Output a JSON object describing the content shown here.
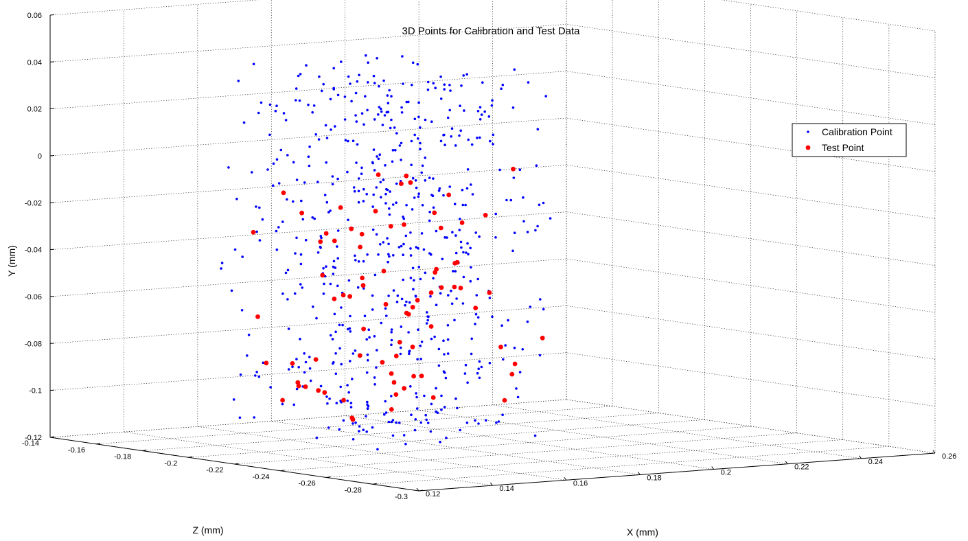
{
  "chart_data": {
    "type": "scatter",
    "dimensions": 3,
    "title": "3D Points for Calibration and Test Data",
    "xlabel": "X (mm)",
    "ylabel": "Y (mm)",
    "zlabel": "Z (mm)",
    "xlim": [
      0.12,
      0.26
    ],
    "ylim": [
      -0.12,
      0.06
    ],
    "zlim": [
      -0.3,
      -0.14
    ],
    "x_ticks": [
      "0.12",
      "0.14",
      "0.16",
      "0.18",
      "0.2",
      "0.22",
      "0.24",
      "0.26"
    ],
    "y_ticks": [
      "-0.12",
      "-0.1",
      "-0.08",
      "-0.06",
      "-0.04",
      "-0.02",
      "0",
      "0.02",
      "0.04",
      "0.06"
    ],
    "z_ticks": [
      "-0.14",
      "-0.16",
      "-0.18",
      "-0.2",
      "-0.22",
      "-0.24",
      "-0.26",
      "-0.28",
      "-0.3"
    ],
    "grid": true,
    "box": true,
    "legend_position": "top-right",
    "series": [
      {
        "name": "Calibration Point",
        "marker": "dot",
        "color": "#0000ff",
        "count_estimate": 620,
        "x_range": [
          0.128,
          0.178
        ],
        "y_range": [
          -0.11,
          0.048
        ],
        "z_range": [
          -0.27,
          -0.2
        ]
      },
      {
        "name": "Test Point",
        "marker": "circle",
        "color": "#ff0000",
        "count_estimate": 78,
        "x_range": [
          0.13,
          0.175
        ],
        "y_range": [
          -0.1,
          0.007
        ],
        "z_range": [
          -0.27,
          -0.2
        ]
      }
    ]
  }
}
